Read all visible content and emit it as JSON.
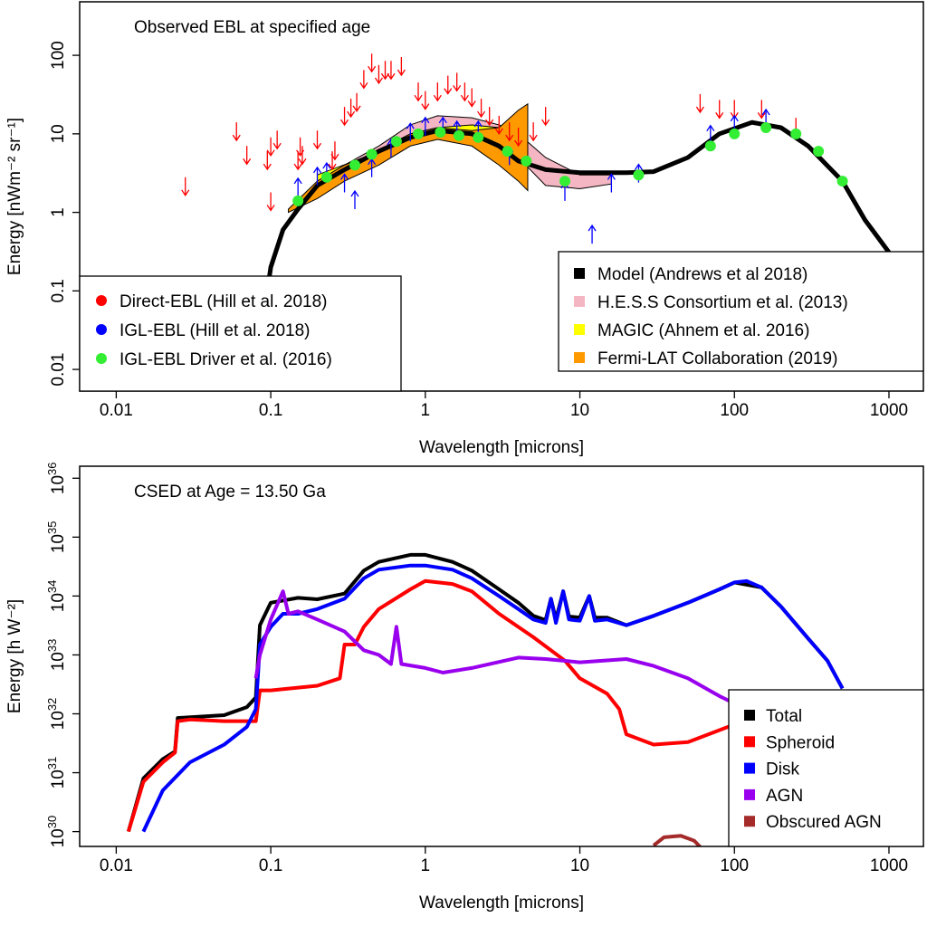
{
  "chart_data": [
    {
      "type": "scatter",
      "annotation": "Observed EBL at specified age",
      "xlabel": "Wavelength [microns]",
      "ylabel": "Energy [nWm⁻² sr⁻¹]",
      "xlim": [
        0.0058,
        1670
      ],
      "ylim": [
        0.0053,
        480
      ],
      "log_x": true,
      "log_y": true,
      "xticks": [
        0.01,
        0.1,
        1,
        10,
        100,
        1000
      ],
      "yticks": [
        0.01,
        0.1,
        1,
        10,
        100
      ],
      "bands": [
        {
          "name": "H.E.S.S Consortium et al. (2013)",
          "color": "#f4b6c2",
          "legend": "bottom-right",
          "x": [
            0.3,
            0.5,
            0.8,
            1.2,
            2,
            3,
            4,
            6,
            10,
            16
          ],
          "lower": [
            3,
            5,
            8,
            10,
            11,
            7,
            5,
            2.2,
            2,
            2.3
          ],
          "upper": [
            4,
            7,
            13,
            17,
            16,
            13,
            10,
            5,
            3,
            3
          ]
        },
        {
          "name": "MAGIC (Ahnem et al. 2016)",
          "color": "#ffff00",
          "legend": "bottom-right",
          "x": [
            0.2,
            0.4,
            0.8,
            1.2,
            2,
            3
          ],
          "lower": [
            2,
            4,
            8,
            10,
            10,
            9
          ],
          "upper": [
            3,
            5,
            10,
            12,
            13,
            12
          ]
        },
        {
          "name": "Fermi-LAT Collaboration (2019)",
          "color": "#ff9900",
          "legend": "bottom-right",
          "x": [
            0.13,
            0.2,
            0.3,
            0.5,
            0.8,
            1.2,
            2,
            3,
            4,
            4.6
          ],
          "lower": [
            1,
            1.5,
            2.5,
            4,
            7,
            8.5,
            7,
            4,
            2.5,
            1.9
          ],
          "upper": [
            1.1,
            2.5,
            4,
            6,
            10,
            12,
            11,
            12,
            20,
            24
          ]
        }
      ],
      "series": [
        {
          "name": "Model (Andrews et al 2018)",
          "color": "#000000",
          "legend": "bottom-right",
          "x": [
            0.095,
            0.1,
            0.12,
            0.15,
            0.2,
            0.3,
            0.5,
            0.8,
            1.2,
            2,
            3,
            4,
            6,
            10,
            20,
            30,
            50,
            80,
            130,
            200,
            300,
            500,
            700,
            1000
          ],
          "values": [
            0.1,
            0.2,
            0.6,
            1.1,
            2.2,
            3.5,
            6,
            9,
            11,
            10,
            7,
            4.5,
            3.5,
            3.2,
            3.2,
            3.3,
            5,
            10,
            14,
            12,
            7,
            2.5,
            0.8,
            0.31
          ]
        }
      ],
      "points": [
        {
          "name": "Direct-EBL (Hill et al. 2018)",
          "color": "#ff0000",
          "marker": "arrow-down",
          "legend": "bottom-left",
          "x": [
            0.028,
            0.06,
            0.07,
            0.095,
            0.1,
            0.1,
            0.11,
            0.15,
            0.155,
            0.16,
            0.2,
            0.25,
            0.26,
            0.3,
            0.33,
            0.36,
            0.4,
            0.45,
            0.5,
            0.55,
            0.6,
            0.7,
            0.9,
            1.0,
            1.2,
            1.4,
            1.6,
            1.8,
            2.0,
            2.3,
            2.6,
            3,
            3.5,
            4,
            5,
            6,
            60,
            80,
            100,
            150,
            250
          ],
          "values": [
            2.8,
            14,
            7,
            6,
            1.8,
            9,
            11,
            6,
            9,
            7,
            11,
            6,
            8,
            22,
            28,
            33,
            65,
            105,
            75,
            85,
            85,
            95,
            45,
            35,
            45,
            55,
            60,
            45,
            38,
            28,
            22,
            17,
            14,
            12,
            14,
            22,
            32,
            27,
            27,
            27,
            16
          ]
        },
        {
          "name": "IGL-EBL (Hill et al. 2018)",
          "color": "#0000ff",
          "marker": "arrow-up",
          "legend": "bottom-left",
          "x": [
            0.15,
            0.2,
            0.23,
            0.3,
            0.35,
            0.45,
            0.6,
            0.8,
            1,
            1.3,
            1.6,
            2.2,
            3.5,
            8,
            12,
            16,
            24,
            70,
            100,
            160
          ],
          "values": [
            1.6,
            2.2,
            2.5,
            1.8,
            1.1,
            2.8,
            5,
            8,
            9.5,
            9.5,
            8.5,
            8.5,
            4,
            1.4,
            0.4,
            1.8,
            2.4,
            7.5,
            10,
            12
          ]
        },
        {
          "name": "IGL-EBL Driver et al. (2016)",
          "color": "#33ee33",
          "marker": "circle",
          "legend": "bottom-left",
          "x": [
            0.15,
            0.23,
            0.35,
            0.45,
            0.65,
            0.9,
            1.25,
            1.65,
            2.2,
            3.4,
            4.5,
            8,
            24,
            70,
            100,
            160,
            250,
            350,
            500
          ],
          "values": [
            1.4,
            2.8,
            4,
            5.5,
            8,
            10,
            10.5,
            9.5,
            9,
            6,
            4.5,
            2.5,
            3,
            7,
            10,
            12,
            10,
            6,
            2.5
          ]
        }
      ]
    },
    {
      "type": "line",
      "annotation": "CSED at Age = 13.50 Ga",
      "xlabel": "Wavelength [microns]",
      "ylabel": "Energy [h W⁻²]",
      "xlim": [
        0.0058,
        1670
      ],
      "ylim": [
        5.6e+29,
        1.6e+36
      ],
      "log_x": true,
      "log_y": true,
      "xticks": [
        0.01,
        0.1,
        1,
        10,
        100,
        1000
      ],
      "yticks": [
        {
          "value": 1e+30,
          "label": "10",
          "exp": "30"
        },
        {
          "value": 1e+31,
          "label": "10",
          "exp": "31"
        },
        {
          "value": 1e+32,
          "label": "10",
          "exp": "32"
        },
        {
          "value": 1e+33,
          "label": "10",
          "exp": "33"
        },
        {
          "value": 1e+34,
          "label": "10",
          "exp": "34"
        },
        {
          "value": 1e+35,
          "label": "10",
          "exp": "35"
        },
        {
          "value": 1e+36,
          "label": "10",
          "exp": "36"
        }
      ],
      "legend": "bottom-right",
      "series": [
        {
          "name": "Total",
          "color": "#000000",
          "x": [
            0.012,
            0.015,
            0.02,
            0.024,
            0.025,
            0.05,
            0.07,
            0.08,
            0.085,
            0.1,
            0.15,
            0.2,
            0.3,
            0.4,
            0.5,
            0.8,
            1,
            1.5,
            2,
            3,
            4,
            5,
            6,
            6.5,
            7,
            7.8,
            8.5,
            10,
            11.5,
            12.5,
            15,
            20,
            30,
            50,
            80,
            100,
            150,
            200,
            300,
            400,
            500
          ],
          "values": [
            1e+30,
            8e+30,
            1.7e+31,
            2.3e+31,
            8.5e+31,
            9.5e+31,
            1.3e+32,
            1.9e+32,
            3.2e+33,
            7.7e+33,
            9.3e+33,
            8.8e+33,
            1.1e+34,
            2.7e+34,
            3.8e+34,
            5e+34,
            5e+34,
            3.8e+34,
            2.7e+34,
            1.3e+34,
            7.7e+33,
            4.6e+33,
            3.9e+33,
            9e+33,
            4e+33,
            1.2e+34,
            4.5e+33,
            4.3e+33,
            1e+34,
            4.3e+33,
            4.3e+33,
            3.2e+33,
            4.6e+33,
            7.7e+33,
            1.3e+34,
            1.7e+34,
            1.4e+34,
            6.6e+33,
            1.9e+33,
            8e+32,
            2.7e+32
          ]
        },
        {
          "name": "Spheroid",
          "color": "#ff0000",
          "x": [
            0.012,
            0.015,
            0.02,
            0.024,
            0.025,
            0.03,
            0.05,
            0.08,
            0.085,
            0.1,
            0.2,
            0.28,
            0.3,
            0.35,
            0.4,
            0.5,
            0.8,
            1,
            1.5,
            2,
            3,
            5,
            8,
            10,
            15,
            18,
            20,
            30,
            50,
            100
          ],
          "values": [
            1e+30,
            7e+30,
            1.5e+31,
            2.2e+31,
            7.5e+31,
            8e+31,
            7.5e+31,
            7.5e+31,
            2.5e+32,
            2.5e+32,
            3e+32,
            4e+32,
            1.5e+33,
            1.5e+33,
            3e+33,
            6e+33,
            1.3e+34,
            1.8e+34,
            1.6e+34,
            1.2e+34,
            5e+33,
            2e+33,
            8e+32,
            4e+32,
            2.2e+32,
            1.2e+32,
            4.5e+31,
            3e+31,
            3.3e+31,
            6.6e+31
          ]
        },
        {
          "name": "Disk",
          "color": "#0000ff",
          "x": [
            0.015,
            0.02,
            0.03,
            0.05,
            0.07,
            0.08,
            0.085,
            0.1,
            0.12,
            0.15,
            0.2,
            0.3,
            0.4,
            0.5,
            0.8,
            1,
            1.5,
            2,
            3,
            4,
            5,
            6,
            6.5,
            7,
            7.8,
            8.5,
            10,
            11.5,
            12.5,
            15,
            20,
            30,
            50,
            80,
            100,
            120,
            150,
            200,
            300,
            400,
            500
          ],
          "values": [
            1e+30,
            5e+30,
            1.5e+31,
            3e+31,
            6e+31,
            1.2e+32,
            1.5e+33,
            3e+33,
            5e+33,
            5e+33,
            6e+33,
            9e+33,
            2e+34,
            2.8e+34,
            3.3e+34,
            3.3e+34,
            2.8e+34,
            2e+34,
            1e+34,
            6e+33,
            4e+33,
            3.5e+33,
            9e+33,
            3.5e+33,
            1.2e+34,
            4e+33,
            3.8e+33,
            1e+34,
            3.8e+33,
            4e+33,
            3.2e+33,
            4.6e+33,
            7.7e+33,
            1.3e+34,
            1.7e+34,
            1.8e+34,
            1.4e+34,
            6.6e+33,
            1.9e+33,
            8e+32,
            2.7e+32
          ]
        },
        {
          "name": "AGN",
          "color": "#9900ee",
          "x": [
            0.08,
            0.085,
            0.1,
            0.12,
            0.13,
            0.15,
            0.2,
            0.3,
            0.4,
            0.5,
            0.6,
            0.65,
            0.7,
            1,
            1.3,
            2,
            4,
            6,
            10,
            20,
            30,
            50,
            80,
            100
          ],
          "values": [
            4e+32,
            1e+33,
            4e+33,
            1.2e+34,
            5e+33,
            5.5e+33,
            4e+33,
            2.5e+33,
            1.2e+33,
            1e+33,
            7e+32,
            3e+33,
            7e+32,
            6e+32,
            5e+32,
            6e+32,
            9e+32,
            8.5e+32,
            7.5e+32,
            8.5e+32,
            6.5e+32,
            4e+32,
            2e+32,
            1.5e+32
          ]
        },
        {
          "name": "Obscured AGN",
          "color": "#a52a2a",
          "x": [
            30,
            35,
            45,
            55,
            60
          ],
          "values": [
            5.8e+29,
            8e+29,
            8.5e+29,
            7e+29,
            5.5e+29
          ]
        }
      ]
    }
  ]
}
